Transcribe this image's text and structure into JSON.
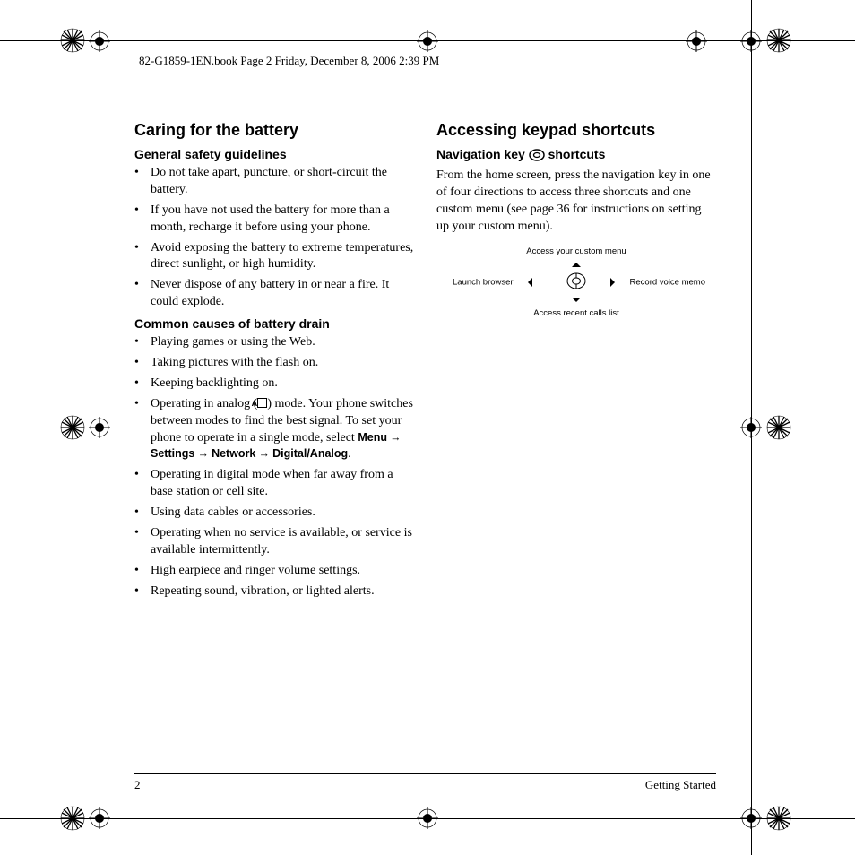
{
  "header": {
    "imprint": "82-G1859-1EN.book  Page 2  Friday, December 8, 2006  2:39 PM"
  },
  "left_column": {
    "title": "Caring for the battery",
    "section1": {
      "heading": "General safety guidelines",
      "items": [
        "Do not take apart, puncture, or short-circuit the battery.",
        "If you have not used the battery for more than a month, recharge it before using your phone.",
        "Avoid exposing the battery to extreme temperatures, direct sunlight, or high humidity.",
        "Never dispose of any battery in or near a fire. It could explode."
      ]
    },
    "section2": {
      "heading": "Common causes of battery drain",
      "items_pre": [
        "Playing games or using the Web.",
        "Taking pictures with the flash on.",
        "Keeping backlighting on."
      ],
      "analog_item": {
        "prefix": "Operating in analog (",
        "icon_letter": "A",
        "mid": ") mode. Your phone switches between modes to find the best signal. To set your phone to operate in a single mode, select ",
        "menu": [
          "Menu",
          "Settings",
          "Network",
          "Digital/Analog"
        ],
        "suffix": "."
      },
      "items_post": [
        "Operating in digital mode when far away from a base station or cell site.",
        "Using data cables or accessories.",
        "Operating when no service is available, or service is available intermittently.",
        "High earpiece and ringer volume settings.",
        "Repeating sound, vibration, or lighted alerts."
      ]
    }
  },
  "right_column": {
    "title": "Accessing keypad shortcuts",
    "subtitle_prefix": "Navigation key ",
    "subtitle_suffix": " shortcuts",
    "paragraph": "From the home screen, press the navigation key in one of four directions to access three shortcuts and one custom menu (see page 36 for instructions on setting up your custom menu).",
    "nav_diagram": {
      "up": "Access your custom menu",
      "down": "Access recent calls list",
      "left": "Launch browser",
      "right": "Record voice memo"
    }
  },
  "footer": {
    "page_number": "2",
    "section": "Getting Started"
  },
  "style": {
    "background": "#ffffff",
    "text_color": "#000000",
    "body_font": "Times New Roman",
    "heading_font": "Arial",
    "h1_size_pt": 18,
    "h2_size_pt": 14,
    "body_size_pt": 14
  }
}
